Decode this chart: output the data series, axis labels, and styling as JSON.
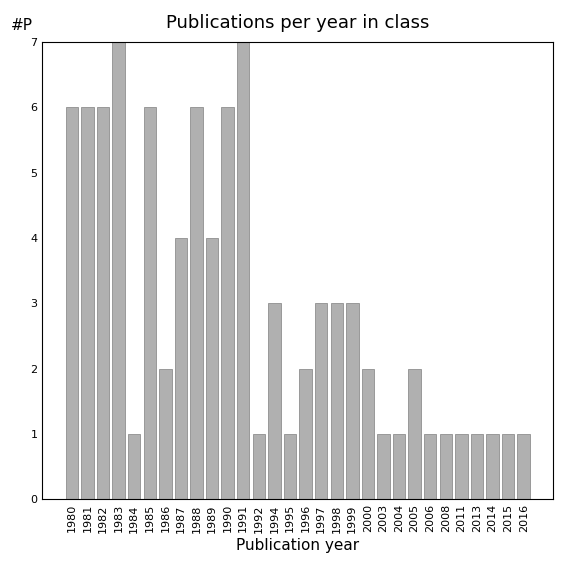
{
  "title": "Publications per year in class",
  "xlabel": "Publication year",
  "ylabel": "#P",
  "categories": [
    "1980",
    "1981",
    "1982",
    "1983",
    "1984",
    "1985",
    "1986",
    "1987",
    "1988",
    "1989",
    "1990",
    "1991",
    "1992",
    "1994",
    "1995",
    "1996",
    "1997",
    "1998",
    "1999",
    "2000",
    "2003",
    "2004",
    "2005",
    "2006",
    "2008",
    "2011",
    "2013",
    "2014",
    "2015",
    "2016"
  ],
  "values": [
    6,
    6,
    6,
    7,
    1,
    6,
    2,
    4,
    6,
    4,
    6,
    7,
    1,
    3,
    1,
    2,
    3,
    3,
    3,
    2,
    1,
    1,
    2,
    1,
    1,
    1,
    1,
    1,
    1,
    1
  ],
  "bar_color": "#b0b0b0",
  "bar_edge_color": "#808080",
  "ylim": [
    0,
    7
  ],
  "yticks": [
    0,
    1,
    2,
    3,
    4,
    5,
    6,
    7
  ],
  "background_color": "#ffffff",
  "title_fontsize": 13,
  "label_fontsize": 11,
  "tick_fontsize": 8
}
